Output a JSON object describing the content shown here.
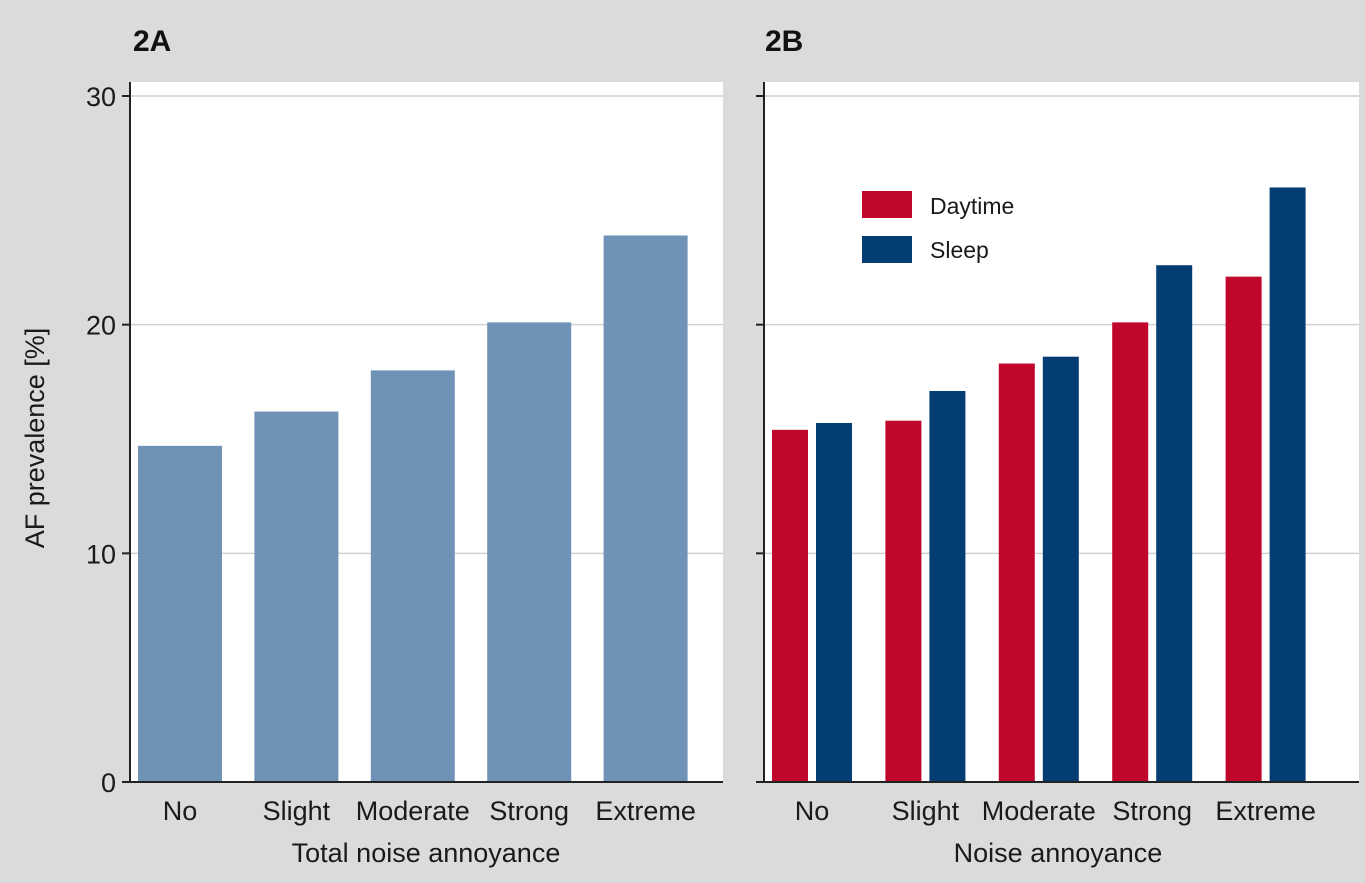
{
  "chart_data": [
    {
      "panel_label": "2A",
      "type": "bar",
      "categories": [
        "No",
        "Slight",
        "Moderate",
        "Strong",
        "Extreme"
      ],
      "series": [
        {
          "values": [
            14.7,
            16.2,
            18.0,
            20.1,
            23.9
          ],
          "color": "#6f92b7"
        }
      ],
      "ylabel": "AF prevalence [%]",
      "xlabel": "Total noise annoyance",
      "ylim": [
        0,
        30
      ],
      "yticks": [
        "0",
        "10",
        "20",
        "30"
      ],
      "grid": true
    },
    {
      "panel_label": "2B",
      "type": "bar",
      "categories": [
        "No",
        "Slight",
        "Moderate",
        "Strong",
        "Extreme"
      ],
      "series": [
        {
          "name": "Daytime",
          "values": [
            15.4,
            15.8,
            18.3,
            20.1,
            22.1
          ],
          "color": "#c0072b"
        },
        {
          "name": "Sleep",
          "values": [
            15.7,
            17.1,
            18.6,
            22.6,
            26.0
          ],
          "color": "#043c74"
        }
      ],
      "ylabel": "",
      "xlabel": "Noise annoyance",
      "ylim": [
        0,
        30
      ],
      "grid": true,
      "legend_position": "top-center"
    }
  ]
}
